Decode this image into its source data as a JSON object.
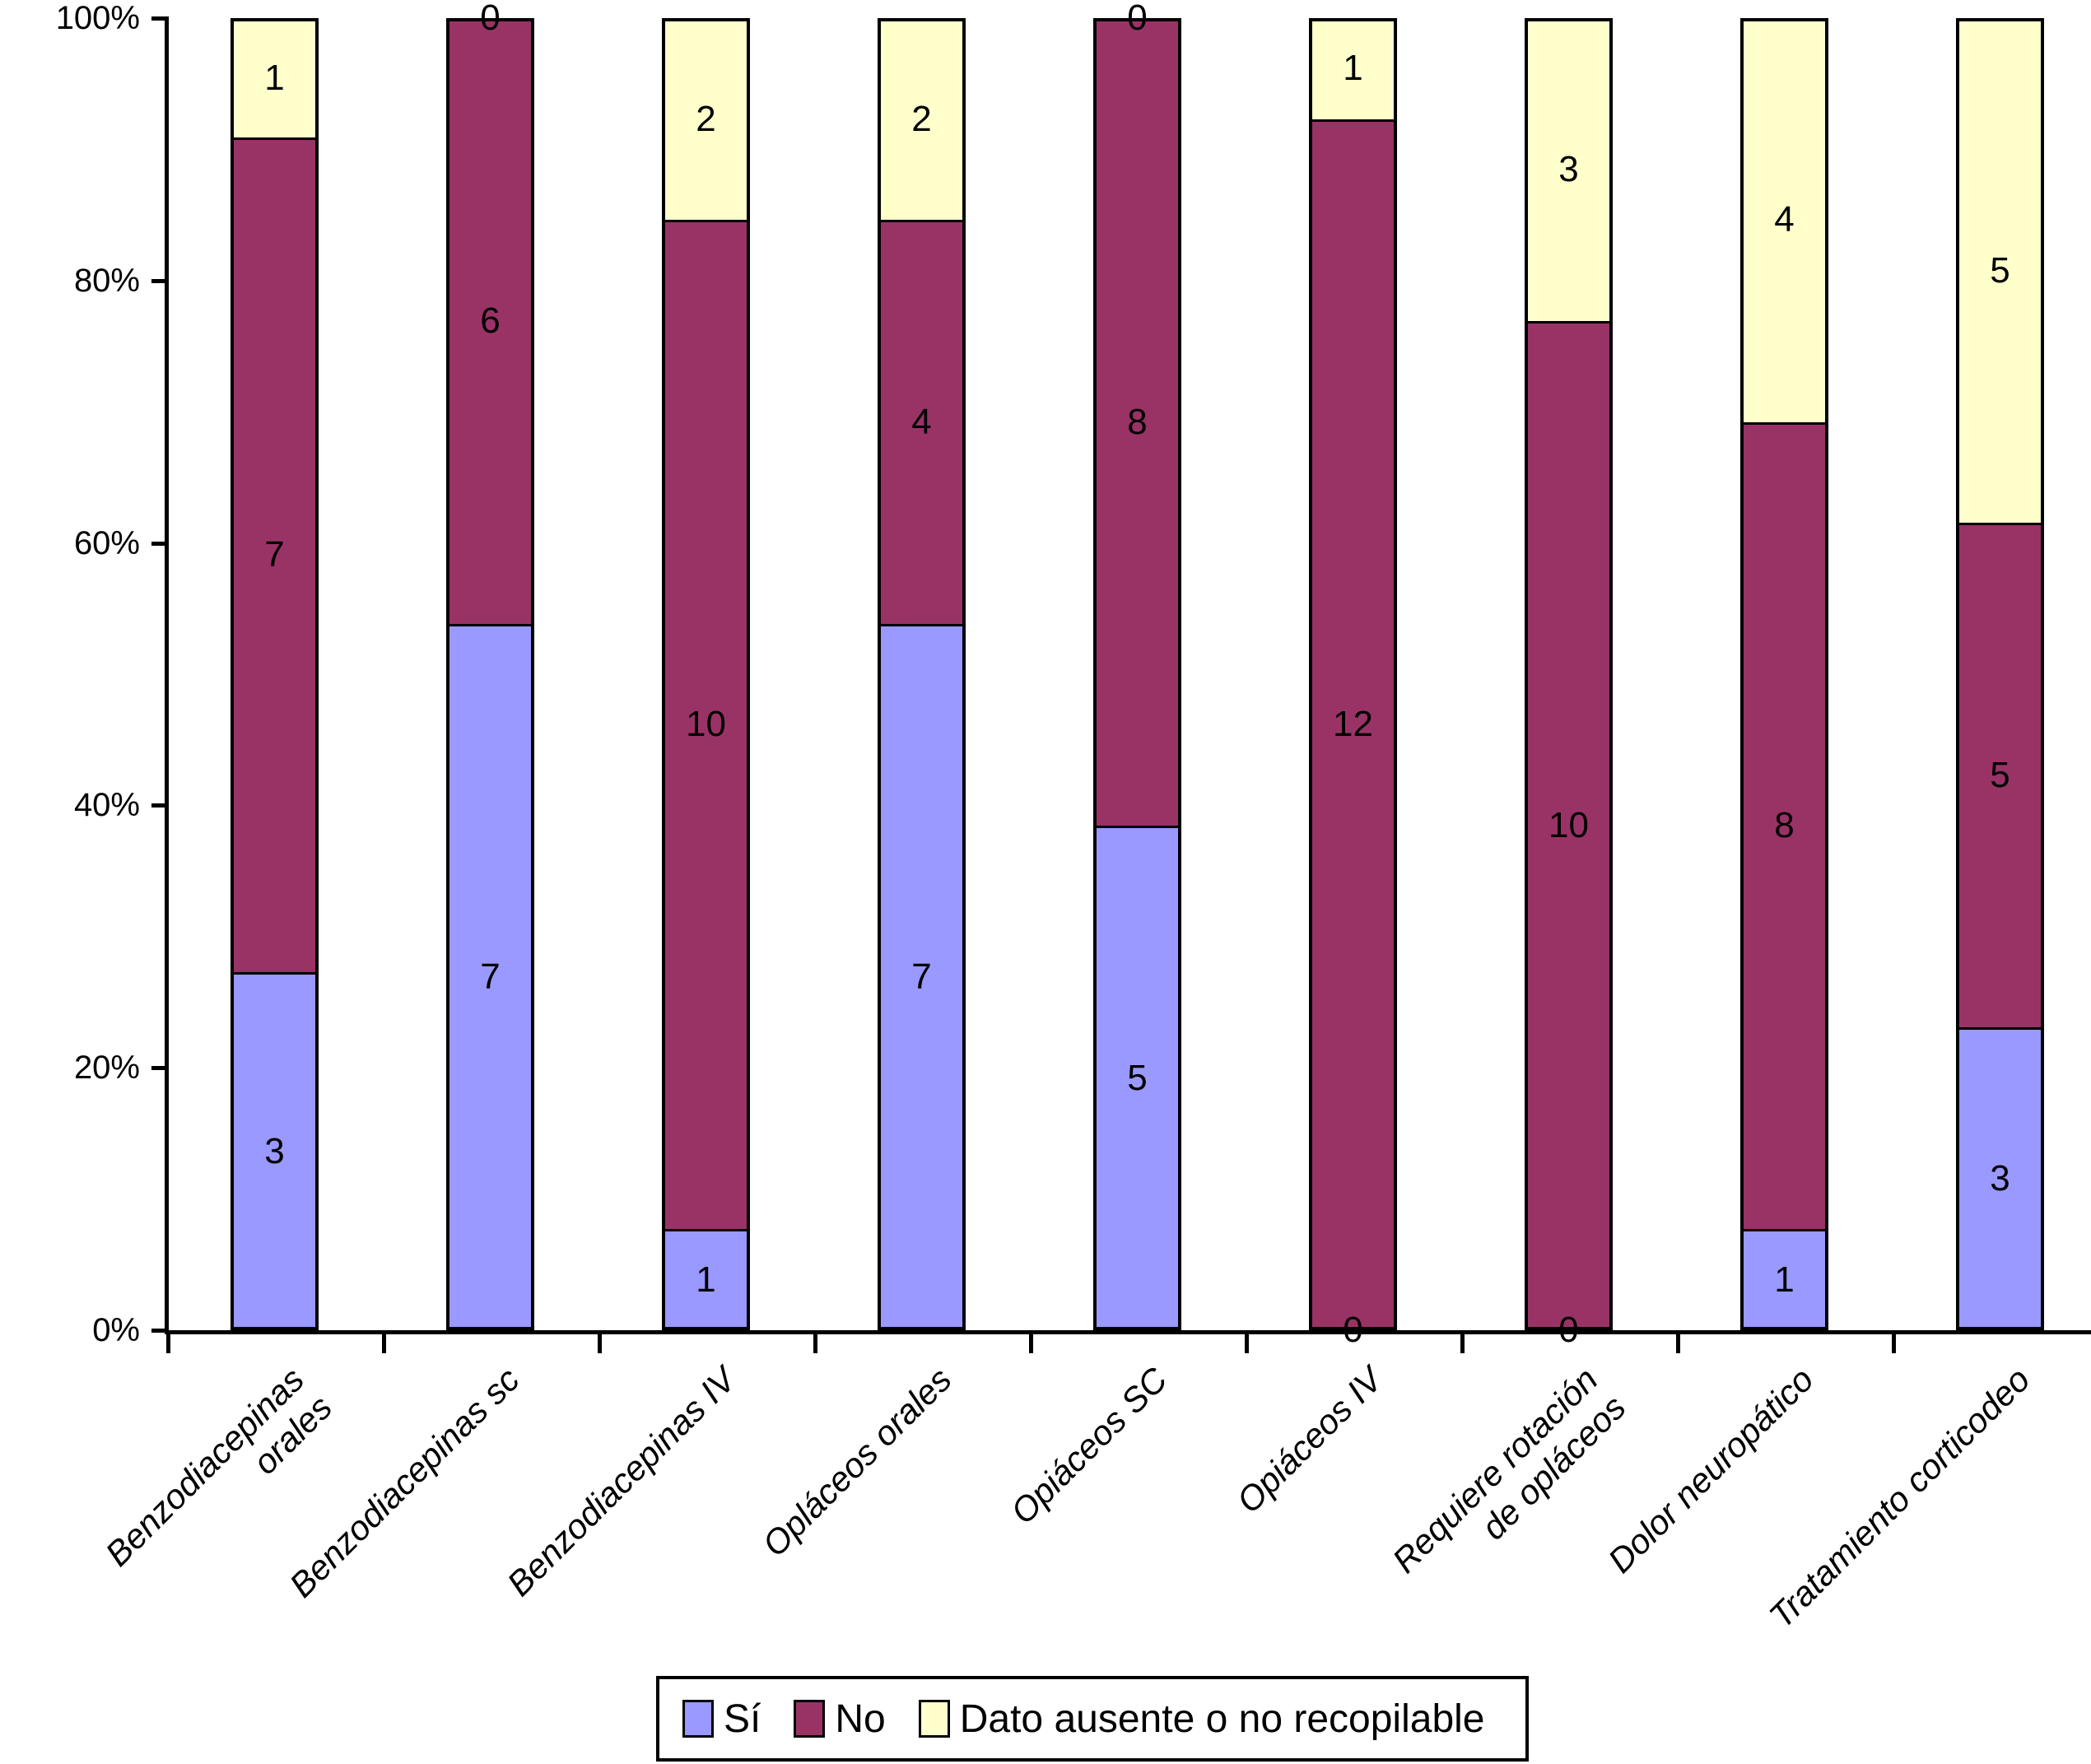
{
  "chart_data": {
    "type": "bar",
    "stacked": true,
    "percent_of_total": true,
    "title": "",
    "xlabel": "",
    "ylabel": "",
    "grid": false,
    "background": "#ffffff",
    "axis_color": "#000000",
    "legend_position": "bottom",
    "bar_value_labels": true,
    "y_ticks": [
      "0%",
      "20%",
      "40%",
      "60%",
      "80%",
      "100%"
    ],
    "ylim": [
      0,
      100
    ],
    "categories": [
      "Benzodiacepinas orales",
      "Benzodiacepinas sc",
      "Benzodiacepinas IV",
      "Opláceos orales",
      "Opiáceos SC",
      "Opiáceos IV",
      "Requiere rotación\nde opláceos",
      "Dolor neuropático",
      "Tratamiento corticodeo"
    ],
    "series": [
      {
        "name": "Sí",
        "color": "#9999FF",
        "values": [
          3,
          7,
          1,
          7,
          5,
          0,
          0,
          1,
          3
        ]
      },
      {
        "name": "No",
        "color": "#993366",
        "values": [
          7,
          6,
          10,
          4,
          8,
          12,
          10,
          8,
          5
        ]
      },
      {
        "name": "Dato ausente o no recopilable",
        "color": "#FFFFCC",
        "values": [
          1,
          0,
          2,
          2,
          0,
          1,
          3,
          4,
          5
        ]
      }
    ],
    "category_totals": [
      11,
      13,
      13,
      13,
      13,
      13,
      13,
      13,
      13
    ]
  }
}
